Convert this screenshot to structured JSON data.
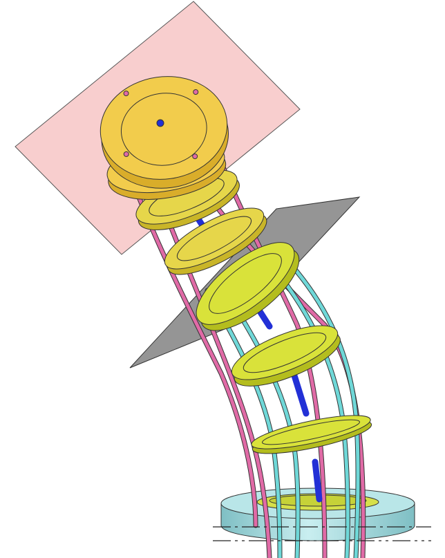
{
  "diagram": {
    "subject": "continuum-robot",
    "colors": {
      "background": "#ffffff",
      "upper_plane_fill": "#f7c6c6",
      "middle_plane_fill": "#8a8a8a",
      "top_ring": "#f2cc4c",
      "top_ring_shade": "#d9ad2a",
      "lower_ring": "#d9e23a",
      "lower_ring_shade": "#b4bd1e",
      "pink_rod": "#e06aa6",
      "cyan_rod": "#6fd8d8",
      "blue_segment": "#2230d6",
      "base_cylinder": "#a8dde0",
      "base_cylinder_shade": "#7fbfc4",
      "centerline": "#222222"
    },
    "counts": {
      "top_rings": 2,
      "yellow_green_rings": 4,
      "thin_rings": 2,
      "blue_segments": 4
    }
  }
}
